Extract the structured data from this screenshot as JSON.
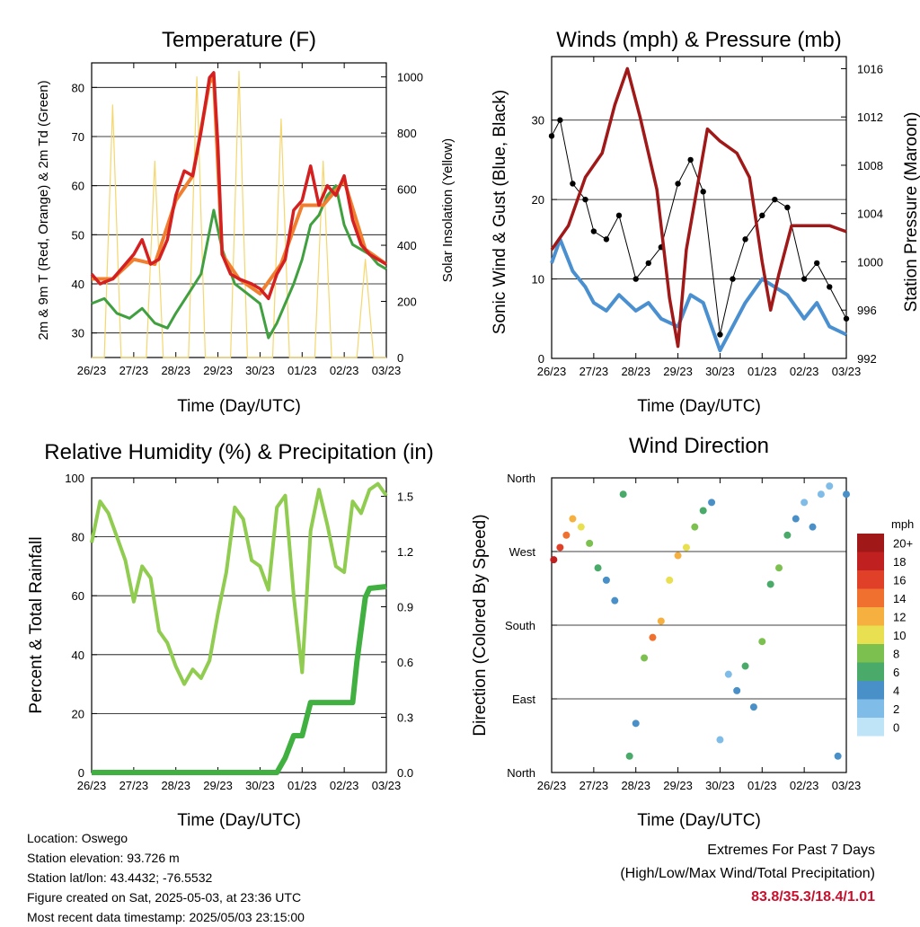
{
  "colors": {
    "temp_2m": "#d42020",
    "temp_9m": "#f08030",
    "dewpoint": "#40a040",
    "solar": "#f5d76e",
    "wind": "#4a90d0",
    "gust": "#000000",
    "pressure": "#a01818",
    "rh": "#90cc50",
    "precip": "#40b040",
    "extremes": "#c8102e"
  },
  "x_ticks": [
    "26/23",
    "27/23",
    "28/23",
    "29/23",
    "30/23",
    "01/23",
    "02/23",
    "03/23"
  ],
  "panels": {
    "temperature": {
      "title": "Temperature (F)",
      "xlabel": "Time (Day/UTC)",
      "ylabel_left": "2m & 9m T (Red, Orange) & 2m Td (Green)",
      "ylabel_right": "Solar Insolation (Yellow)",
      "yticks_left": [
        "30",
        "40",
        "50",
        "60",
        "70",
        "80"
      ],
      "yticks_right": [
        "0",
        "200",
        "400",
        "600",
        "800",
        "1000"
      ]
    },
    "winds": {
      "title": "Winds (mph) & Pressure (mb)",
      "xlabel": "Time (Day/UTC)",
      "ylabel_left": "Sonic Wind & Gust (Blue, Black)",
      "ylabel_right": "Station Pressure (Maroon)",
      "yticks_left": [
        "0",
        "10",
        "20",
        "30"
      ],
      "yticks_right": [
        "992",
        "996",
        "1000",
        "1004",
        "1008",
        "1012",
        "1016"
      ]
    },
    "humidity": {
      "title": "Relative Humidity (%) & Precipitation (in)",
      "xlabel": "Time (Day/UTC)",
      "ylabel_left": "Percent & Total Rainfall",
      "yticks_left": [
        "0",
        "20",
        "40",
        "60",
        "80",
        "100"
      ],
      "yticks_right": [
        "0.0",
        "0.3",
        "0.6",
        "0.9",
        "1.2",
        "1.5"
      ]
    },
    "direction": {
      "title": "Wind Direction",
      "xlabel": "Time (Day/UTC)",
      "ylabel_left": "Direction (Colored By Speed)",
      "yticks_left": [
        "North",
        "East",
        "South",
        "West",
        "North"
      ],
      "legend_title": "mph",
      "legend_labels": [
        "0",
        "2",
        "4",
        "6",
        "8",
        "10",
        "12",
        "14",
        "16",
        "18",
        "20+"
      ],
      "legend_colors": [
        "#bfe3f7",
        "#7fbce8",
        "#4a90c8",
        "#4aaa6a",
        "#7cc050",
        "#e8e050",
        "#f6b040",
        "#f07030",
        "#e04028",
        "#c02020",
        "#a01818"
      ]
    }
  },
  "chart_data": [
    {
      "type": "line",
      "title": "Temperature (F)",
      "xlabel": "Time (Day/UTC)",
      "ylabel": "2m & 9m T (Red, Orange) & 2m Td (Green)",
      "y2label": "Solar Insolation (Yellow)",
      "ylim": [
        25,
        85
      ],
      "y2lim": [
        0,
        1050
      ],
      "x_range_days": [
        0,
        7
      ],
      "series": [
        {
          "name": "2m T",
          "x": [
            0,
            0.2,
            0.5,
            0.8,
            1.0,
            1.2,
            1.4,
            1.6,
            1.8,
            2.0,
            2.2,
            2.4,
            2.6,
            2.8,
            2.9,
            3.0,
            3.1,
            3.3,
            3.5,
            3.8,
            4.0,
            4.2,
            4.4,
            4.6,
            4.8,
            5.0,
            5.2,
            5.4,
            5.6,
            5.8,
            6.0,
            6.2,
            6.4,
            6.6,
            6.8,
            7.0
          ],
          "y": [
            42,
            40,
            41,
            44,
            46,
            49,
            44,
            45,
            49,
            58,
            63,
            62,
            71,
            82,
            83,
            68,
            46,
            42,
            41,
            40,
            39,
            37,
            42,
            45,
            55,
            57,
            64,
            56,
            60,
            58,
            62,
            53,
            48,
            46,
            45,
            44
          ]
        },
        {
          "name": "9m T",
          "x": [
            0,
            0.5,
            1.0,
            1.5,
            2.0,
            2.4,
            2.8,
            2.9,
            3.1,
            3.5,
            4.0,
            4.5,
            5.0,
            5.5,
            6.0,
            6.5,
            7.0
          ],
          "y": [
            41,
            41,
            45,
            44,
            57,
            62,
            81,
            82,
            46,
            41,
            38,
            44,
            56,
            56,
            61,
            47,
            44
          ]
        },
        {
          "name": "2m Td",
          "x": [
            0,
            0.3,
            0.6,
            0.9,
            1.2,
            1.5,
            1.8,
            2.0,
            2.3,
            2.6,
            2.9,
            3.1,
            3.4,
            3.7,
            4.0,
            4.2,
            4.4,
            4.6,
            4.8,
            5.0,
            5.2,
            5.4,
            5.6,
            5.8,
            6.0,
            6.2,
            6.4,
            6.6,
            6.8,
            7.0
          ],
          "y": [
            36,
            37,
            34,
            33,
            35,
            32,
            31,
            34,
            38,
            42,
            55,
            47,
            40,
            38,
            36,
            29,
            32,
            36,
            40,
            45,
            52,
            54,
            58,
            60,
            52,
            48,
            47,
            46,
            44,
            43
          ]
        },
        {
          "name": "Solar Insolation",
          "x": [
            0,
            0.3,
            0.5,
            0.7,
            1.0,
            1.3,
            1.5,
            1.7,
            2.0,
            2.3,
            2.5,
            2.7,
            3.0,
            3.3,
            3.5,
            3.7,
            4.0,
            4.3,
            4.5,
            4.7,
            5.0,
            5.3,
            5.5,
            5.7,
            6.0,
            6.3,
            6.5,
            6.7,
            7.0
          ],
          "y": [
            0,
            0,
            900,
            0,
            0,
            0,
            700,
            0,
            0,
            0,
            1000,
            0,
            0,
            0,
            1020,
            0,
            0,
            0,
            850,
            0,
            0,
            0,
            700,
            0,
            0,
            0,
            350,
            0,
            0
          ]
        }
      ]
    },
    {
      "type": "line",
      "title": "Winds (mph) & Pressure (mb)",
      "xlabel": "Time (Day/UTC)",
      "ylabel": "Sonic Wind & Gust (Blue, Black)",
      "y2label": "Station Pressure (Maroon)",
      "ylim": [
        0,
        38
      ],
      "y2lim": [
        992,
        1017
      ],
      "x_range_days": [
        0,
        7
      ],
      "series": [
        {
          "name": "Sonic Wind",
          "x": [
            0,
            0.2,
            0.5,
            0.8,
            1.0,
            1.3,
            1.6,
            2.0,
            2.3,
            2.6,
            3.0,
            3.3,
            3.6,
            4.0,
            4.3,
            4.6,
            5.0,
            5.3,
            5.6,
            6.0,
            6.3,
            6.6,
            7.0
          ],
          "y": [
            12,
            15,
            11,
            9,
            7,
            6,
            8,
            6,
            7,
            5,
            4,
            8,
            7,
            1,
            4,
            7,
            10,
            9,
            8,
            5,
            7,
            4,
            3
          ]
        },
        {
          "name": "Gust",
          "x": [
            0,
            0.2,
            0.5,
            0.8,
            1.0,
            1.3,
            1.6,
            2.0,
            2.3,
            2.6,
            3.0,
            3.3,
            3.6,
            4.0,
            4.3,
            4.6,
            5.0,
            5.3,
            5.6,
            6.0,
            6.3,
            6.6,
            7.0
          ],
          "y": [
            28,
            30,
            22,
            20,
            16,
            15,
            18,
            10,
            12,
            14,
            22,
            25,
            21,
            3,
            10,
            15,
            18,
            20,
            19,
            10,
            12,
            9,
            5
          ]
        },
        {
          "name": "Station Pressure",
          "x": [
            0,
            0.4,
            0.8,
            1.2,
            1.5,
            1.8,
            2.1,
            2.5,
            2.8,
            3.0,
            3.2,
            3.5,
            3.7,
            4.0,
            4.4,
            4.7,
            5.0,
            5.2,
            5.4,
            5.7,
            6.0,
            6.3,
            6.6,
            7.0
          ],
          "y": [
            1001,
            1003,
            1007,
            1009,
            1013,
            1016,
            1012,
            1006,
            997,
            993,
            1001,
            1007,
            1011,
            1010,
            1009,
            1007,
            1000,
            996,
            999,
            1003,
            1003,
            1003,
            1003,
            1002.5
          ]
        }
      ]
    },
    {
      "type": "line",
      "title": "Relative Humidity (%) & Precipitation (in)",
      "xlabel": "Time (Day/UTC)",
      "ylabel": "Percent & Total Rainfall",
      "ylim": [
        0,
        100
      ],
      "y2lim": [
        0,
        1.6
      ],
      "x_range_days": [
        0,
        7
      ],
      "series": [
        {
          "name": "Relative Humidity",
          "x": [
            0,
            0.2,
            0.4,
            0.6,
            0.8,
            1.0,
            1.2,
            1.4,
            1.6,
            1.8,
            2.0,
            2.2,
            2.4,
            2.6,
            2.8,
            3.0,
            3.2,
            3.4,
            3.6,
            3.8,
            4.0,
            4.2,
            4.4,
            4.6,
            4.8,
            5.0,
            5.2,
            5.4,
            5.6,
            5.8,
            6.0,
            6.2,
            6.4,
            6.6,
            6.8,
            7.0
          ],
          "y": [
            78,
            92,
            88,
            80,
            72,
            58,
            70,
            66,
            48,
            44,
            36,
            30,
            35,
            32,
            38,
            54,
            68,
            90,
            86,
            72,
            70,
            62,
            90,
            94,
            60,
            34,
            82,
            96,
            84,
            70,
            68,
            92,
            88,
            96,
            98,
            94
          ]
        },
        {
          "name": "Total Precipitation",
          "x": [
            0,
            4.4,
            4.6,
            4.8,
            5.0,
            5.2,
            5.4,
            5.6,
            5.8,
            6.0,
            6.2,
            6.3,
            6.5,
            6.6,
            7.0
          ],
          "y": [
            0,
            0,
            0.08,
            0.2,
            0.2,
            0.38,
            0.38,
            0.38,
            0.38,
            0.38,
            0.38,
            0.6,
            0.95,
            1.0,
            1.01
          ]
        }
      ]
    },
    {
      "type": "scatter",
      "title": "Wind Direction",
      "xlabel": "Time (Day/UTC)",
      "ylabel": "Direction (Colored By Speed)",
      "ylim_deg": [
        0,
        360
      ],
      "y_tick_labels": [
        "North",
        "East",
        "South",
        "West",
        "North"
      ],
      "legend": [
        "0",
        "2",
        "4",
        "6",
        "8",
        "10",
        "12",
        "14",
        "16",
        "18",
        "20+"
      ],
      "series": [
        {
          "name": "Direction",
          "x": [
            0.05,
            0.2,
            0.35,
            0.5,
            0.7,
            0.9,
            1.1,
            1.3,
            1.5,
            1.7,
            1.85,
            2.0,
            2.2,
            2.4,
            2.6,
            2.8,
            3.0,
            3.2,
            3.4,
            3.6,
            3.8,
            4.0,
            4.2,
            4.4,
            4.6,
            4.8,
            5.0,
            5.2,
            5.4,
            5.6,
            5.8,
            6.0,
            6.2,
            6.4,
            6.6,
            6.8,
            7.0
          ],
          "y": [
            260,
            275,
            290,
            310,
            300,
            280,
            250,
            235,
            210,
            340,
            20,
            60,
            140,
            165,
            185,
            235,
            265,
            275,
            300,
            320,
            330,
            40,
            120,
            100,
            130,
            80,
            160,
            230,
            250,
            290,
            310,
            330,
            300,
            340,
            350,
            20,
            340
          ],
          "speed": [
            18,
            16,
            14,
            12,
            10,
            8,
            6,
            4,
            4,
            6,
            6,
            4,
            8,
            14,
            12,
            10,
            12,
            10,
            8,
            6,
            4,
            2,
            2,
            4,
            6,
            4,
            8,
            6,
            8,
            6,
            4,
            2,
            4,
            2,
            2,
            4,
            4
          ]
        }
      ]
    }
  ],
  "footer": {
    "location": "Location: Oswego",
    "elevation": "Station elevation: 93.726 m",
    "latlon": "Station lat/lon: 43.4432; -76.5532",
    "created": "Figure created on Sat, 2025-05-03, at 23:36 UTC",
    "timestamp": "Most recent data timestamp: 2025/05/03 23:15:00"
  },
  "extremes": {
    "line1": "Extremes For Past 7 Days",
    "line2": "(High/Low/Max Wind/Total Precipitation)",
    "values": "83.8/35.3/18.4/1.01"
  }
}
